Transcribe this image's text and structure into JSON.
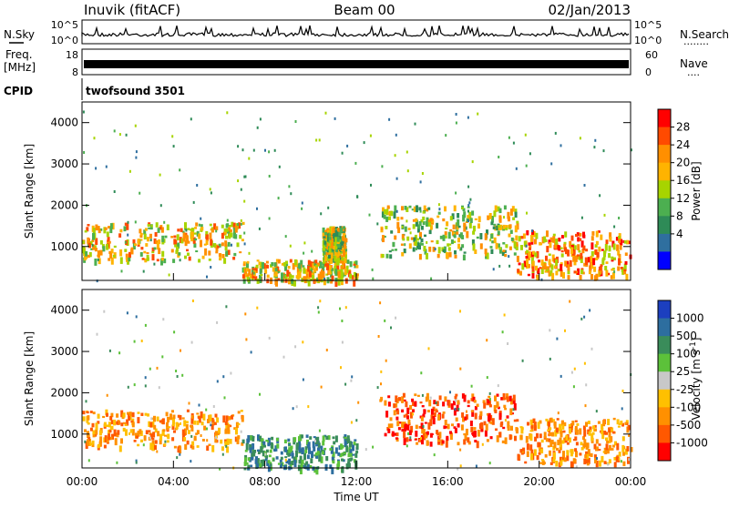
{
  "header": {
    "station": "Inuvik (fitACF)",
    "beam": "Beam 00",
    "date": "02/Jan/2013"
  },
  "summary_panels": {
    "nsky_label": "N.Sky",
    "nsky_ticks": [
      "10^5",
      "10^0"
    ],
    "nsearch_label": "N.Search",
    "nsearch_dots": "........",
    "nsearch_ticks": [
      "10^5",
      "10^0"
    ],
    "freq_label_1": "Freq.",
    "freq_label_2": "[MHz]",
    "freq_ticks": [
      "18",
      "8"
    ],
    "nave_label": "Nave",
    "nave_dots": "....",
    "nave_ticks": [
      "60",
      "0"
    ],
    "cpid_label": "CPID",
    "cpid_value": "twofsound 3501"
  },
  "axes": {
    "ylabel": "Slant Range [km]",
    "yticks": [
      "4000",
      "3000",
      "2000",
      "1000"
    ],
    "xlabel": "Time UT",
    "xticks": [
      "00:00",
      "04:00",
      "08:00",
      "12:00",
      "16:00",
      "20:00",
      "00:00"
    ]
  },
  "power_bar": {
    "label": "Power [dB]",
    "ticks": [
      "28",
      "24",
      "20",
      "16",
      "12",
      "8",
      "4"
    ],
    "colors": [
      "#ff0000",
      "#ff4a00",
      "#ff8f00",
      "#ffb300",
      "#a7d400",
      "#4caf50",
      "#2e8b57",
      "#2f6f9f",
      "#0000ff"
    ]
  },
  "velocity_bar": {
    "label": "Velocity [m s",
    "label_sup": "-1",
    "label_end": "]",
    "ticks": [
      "1000",
      "500",
      "100",
      "25",
      "-25",
      "-100",
      "-500",
      "-1000"
    ],
    "colors": [
      "#1c3fbf",
      "#2d6e9f",
      "#3a8c5a",
      "#5cc13a",
      "#c8c8c8",
      "#ffc000",
      "#ff9000",
      "#ff5800",
      "#ff0000"
    ]
  },
  "chart_data": [
    {
      "type": "heatmap",
      "title": "Power",
      "x_range": [
        "00:00",
        "24:00"
      ],
      "y_range_km": [
        180,
        4500
      ],
      "features": [
        {
          "t_start": 0,
          "t_end": 7,
          "range_km": [
            700,
            1600
          ],
          "level_dB": 24
        },
        {
          "t_start": 7,
          "t_end": 12,
          "range_km": [
            180,
            700
          ],
          "level_dB": 24
        },
        {
          "t_start": 10.5,
          "t_end": 11.5,
          "range_km": [
            700,
            1500
          ],
          "level_dB": 20
        },
        {
          "t_start": 13,
          "t_end": 19,
          "range_km": [
            800,
            2000
          ],
          "level_dB": 20
        },
        {
          "t_start": 19,
          "t_end": 24,
          "range_km": [
            300,
            1400
          ],
          "level_dB": 28
        }
      ]
    },
    {
      "type": "heatmap",
      "title": "Velocity",
      "x_range": [
        "00:00",
        "24:00"
      ],
      "y_range_km": [
        180,
        4500
      ],
      "features": [
        {
          "t_start": 0,
          "t_end": 7,
          "range_km": [
            700,
            1600
          ],
          "velocity": -100
        },
        {
          "t_start": 7,
          "t_end": 12,
          "range_km": [
            180,
            1000
          ],
          "velocity": 100
        },
        {
          "t_start": 13,
          "t_end": 19,
          "range_km": [
            800,
            2000
          ],
          "velocity": -500
        },
        {
          "t_start": 19,
          "t_end": 24,
          "range_km": [
            300,
            1400
          ],
          "velocity": -100
        }
      ]
    }
  ]
}
